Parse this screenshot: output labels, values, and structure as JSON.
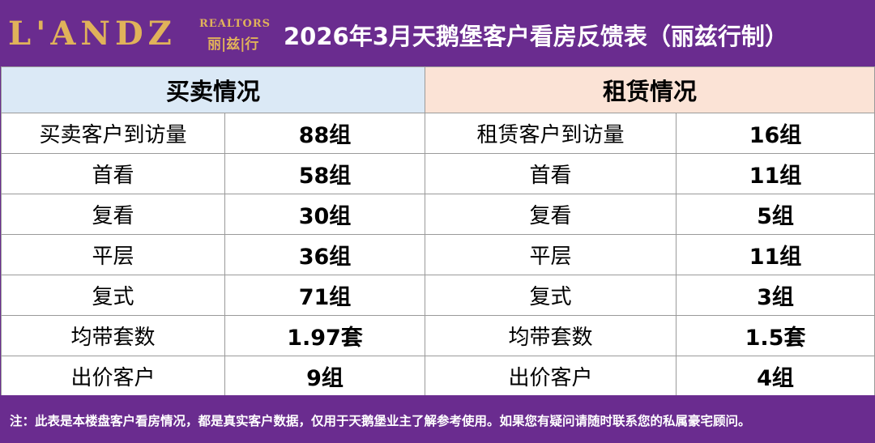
{
  "logo": {
    "main": "L'ANDZ",
    "sub_en": "REALTORS",
    "sub_cn": "丽|兹|行"
  },
  "title": "2026年3月天鹅堡客户看房反馈表（丽兹行制）",
  "sections": {
    "buy": "买卖情况",
    "rent": "租赁情况"
  },
  "rows": [
    {
      "buy_label": "买卖客户到访量",
      "buy_value": "88组",
      "rent_label": "租赁客户到访量",
      "rent_value": "16组"
    },
    {
      "buy_label": "首看",
      "buy_value": "58组",
      "rent_label": "首看",
      "rent_value": "11组"
    },
    {
      "buy_label": "复看",
      "buy_value": "30组",
      "rent_label": "复看",
      "rent_value": "5组"
    },
    {
      "buy_label": "平层",
      "buy_value": "36组",
      "rent_label": "平层",
      "rent_value": "11组"
    },
    {
      "buy_label": "复式",
      "buy_value": "71组",
      "rent_label": "复式",
      "rent_value": "3组"
    },
    {
      "buy_label": "均带套数",
      "buy_value": "1.97套",
      "rent_label": "均带套数",
      "rent_value": "1.5套"
    },
    {
      "buy_label": "出价客户",
      "buy_value": "9组",
      "rent_label": "出价客户",
      "rent_value": "4组"
    }
  ],
  "footer": "注：此表是本楼盘客户看房情况，都是真实客户数据，仅用于天鹅堡业主了解参考使用。如果您有疑问请随时联系您的私属豪宅顾问。",
  "colors": {
    "header_bg": "#6a2c8f",
    "buy_header": "#dbe9f6",
    "rent_header": "#fbe3d6",
    "logo_gold": "#e0b25a"
  }
}
